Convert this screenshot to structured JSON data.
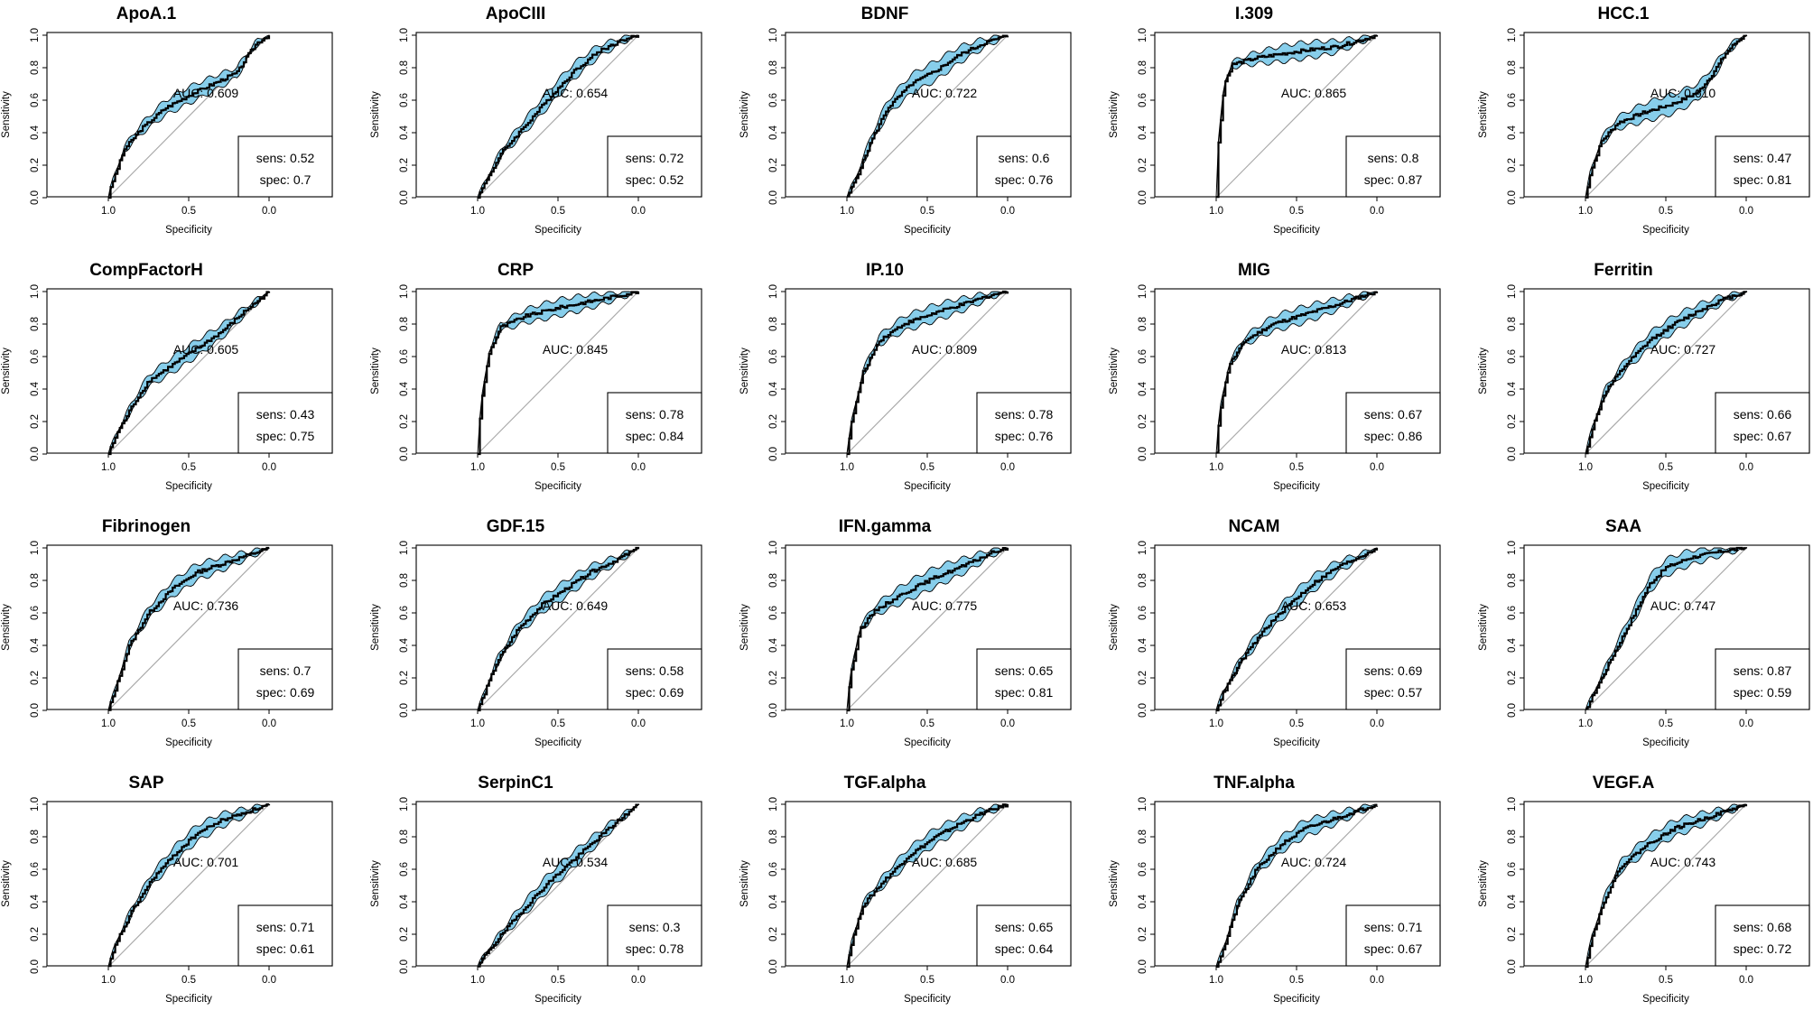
{
  "chart_data": {
    "type": "line",
    "description_axes": {
      "xlabel": "Specificity",
      "ylabel": "Sensitivity",
      "xlim": [
        1.0,
        0.0
      ],
      "ylim": [
        0.0,
        1.0
      ],
      "xticks": [
        "1.0",
        "0.5",
        "0.0"
      ],
      "yticks": [
        "0.0",
        "0.2",
        "0.4",
        "0.6",
        "0.8",
        "1.0"
      ]
    },
    "ci_fill_color": "#87CEEB",
    "curve_color": "#000000",
    "diagonal_color": "#aaaaaa",
    "panels": [
      {
        "title": "ApoA.1",
        "auc_label": "AUC: 0.609",
        "sens_label": "sens: 0.52",
        "spec_label": "spec: 0.7",
        "roc": [
          [
            1,
            0
          ],
          [
            0.98,
            0.08
          ],
          [
            0.9,
            0.3
          ],
          [
            0.8,
            0.42
          ],
          [
            0.65,
            0.55
          ],
          [
            0.5,
            0.63
          ],
          [
            0.35,
            0.7
          ],
          [
            0.2,
            0.77
          ],
          [
            0.15,
            0.85
          ],
          [
            0.08,
            0.95
          ],
          [
            0,
            1
          ]
        ],
        "ci_width": 0.05
      },
      {
        "title": "ApoCIII",
        "auc_label": "AUC: 0.654",
        "sens_label": "sens: 0.72",
        "spec_label": "spec: 0.52",
        "roc": [
          [
            1,
            0
          ],
          [
            0.95,
            0.1
          ],
          [
            0.85,
            0.28
          ],
          [
            0.7,
            0.45
          ],
          [
            0.55,
            0.62
          ],
          [
            0.4,
            0.78
          ],
          [
            0.25,
            0.9
          ],
          [
            0.1,
            0.97
          ],
          [
            0,
            1
          ]
        ],
        "ci_width": 0.05
      },
      {
        "title": "BDNF",
        "auc_label": "AUC: 0.722",
        "sens_label": "sens: 0.6",
        "spec_label": "spec: 0.76",
        "roc": [
          [
            1,
            0
          ],
          [
            0.93,
            0.15
          ],
          [
            0.85,
            0.35
          ],
          [
            0.75,
            0.55
          ],
          [
            0.6,
            0.7
          ],
          [
            0.45,
            0.78
          ],
          [
            0.3,
            0.88
          ],
          [
            0.15,
            0.95
          ],
          [
            0,
            1
          ]
        ],
        "ci_width": 0.06
      },
      {
        "title": "I.309",
        "auc_label": "AUC: 0.865",
        "sens_label": "sens: 0.8",
        "spec_label": "spec: 0.87",
        "roc": [
          [
            1,
            0
          ],
          [
            0.99,
            0.3
          ],
          [
            0.95,
            0.7
          ],
          [
            0.9,
            0.82
          ],
          [
            0.75,
            0.86
          ],
          [
            0.5,
            0.9
          ],
          [
            0.25,
            0.93
          ],
          [
            0.1,
            0.97
          ],
          [
            0,
            1
          ]
        ],
        "ci_width": 0.05
      },
      {
        "title": "HCC.1",
        "auc_label": "AUC: 0.610",
        "sens_label": "sens: 0.47",
        "spec_label": "spec: 0.81",
        "roc": [
          [
            1,
            0
          ],
          [
            0.97,
            0.15
          ],
          [
            0.9,
            0.35
          ],
          [
            0.8,
            0.46
          ],
          [
            0.65,
            0.52
          ],
          [
            0.45,
            0.58
          ],
          [
            0.3,
            0.65
          ],
          [
            0.22,
            0.75
          ],
          [
            0.12,
            0.9
          ],
          [
            0.05,
            0.97
          ],
          [
            0,
            1
          ]
        ],
        "ci_width": 0.06
      },
      {
        "title": "CompFactorH",
        "auc_label": "AUC: 0.605",
        "sens_label": "sens: 0.43",
        "spec_label": "spec: 0.75",
        "roc": [
          [
            1,
            0
          ],
          [
            0.95,
            0.12
          ],
          [
            0.85,
            0.3
          ],
          [
            0.75,
            0.45
          ],
          [
            0.6,
            0.55
          ],
          [
            0.45,
            0.65
          ],
          [
            0.3,
            0.75
          ],
          [
            0.15,
            0.88
          ],
          [
            0,
            1
          ]
        ],
        "ci_width": 0.05
      },
      {
        "title": "CRP",
        "auc_label": "AUC: 0.845",
        "sens_label": "sens: 0.78",
        "spec_label": "spec: 0.84",
        "roc": [
          [
            1,
            0
          ],
          [
            0.98,
            0.3
          ],
          [
            0.93,
            0.62
          ],
          [
            0.86,
            0.78
          ],
          [
            0.7,
            0.85
          ],
          [
            0.5,
            0.9
          ],
          [
            0.3,
            0.94
          ],
          [
            0.1,
            0.98
          ],
          [
            0,
            1
          ]
        ],
        "ci_width": 0.05
      },
      {
        "title": "IP.10",
        "auc_label": "AUC: 0.809",
        "sens_label": "sens: 0.78",
        "spec_label": "spec: 0.76",
        "roc": [
          [
            1,
            0
          ],
          [
            0.97,
            0.2
          ],
          [
            0.9,
            0.5
          ],
          [
            0.8,
            0.7
          ],
          [
            0.65,
            0.8
          ],
          [
            0.45,
            0.87
          ],
          [
            0.25,
            0.93
          ],
          [
            0.1,
            0.98
          ],
          [
            0,
            1
          ]
        ],
        "ci_width": 0.05
      },
      {
        "title": "MIG",
        "auc_label": "AUC: 0.813",
        "sens_label": "sens: 0.67",
        "spec_label": "spec: 0.86",
        "roc": [
          [
            1,
            0
          ],
          [
            0.98,
            0.25
          ],
          [
            0.92,
            0.55
          ],
          [
            0.82,
            0.7
          ],
          [
            0.65,
            0.8
          ],
          [
            0.45,
            0.86
          ],
          [
            0.25,
            0.92
          ],
          [
            0.1,
            0.97
          ],
          [
            0,
            1
          ]
        ],
        "ci_width": 0.05
      },
      {
        "title": "Ferritin",
        "auc_label": "AUC: 0.727",
        "sens_label": "sens: 0.66",
        "spec_label": "spec: 0.67",
        "roc": [
          [
            1,
            0
          ],
          [
            0.96,
            0.15
          ],
          [
            0.88,
            0.38
          ],
          [
            0.75,
            0.55
          ],
          [
            0.6,
            0.7
          ],
          [
            0.45,
            0.8
          ],
          [
            0.3,
            0.88
          ],
          [
            0.15,
            0.95
          ],
          [
            0,
            1
          ]
        ],
        "ci_width": 0.05
      },
      {
        "title": "Fibrinogen",
        "auc_label": "AUC: 0.736",
        "sens_label": "sens: 0.7",
        "spec_label": "spec: 0.69",
        "roc": [
          [
            1,
            0
          ],
          [
            0.95,
            0.15
          ],
          [
            0.87,
            0.4
          ],
          [
            0.75,
            0.6
          ],
          [
            0.6,
            0.75
          ],
          [
            0.45,
            0.85
          ],
          [
            0.3,
            0.9
          ],
          [
            0.15,
            0.95
          ],
          [
            0,
            1
          ]
        ],
        "ci_width": 0.05
      },
      {
        "title": "GDF.15",
        "auc_label": "AUC: 0.649",
        "sens_label": "sens: 0.58",
        "spec_label": "spec: 0.69",
        "roc": [
          [
            1,
            0
          ],
          [
            0.96,
            0.1
          ],
          [
            0.88,
            0.3
          ],
          [
            0.75,
            0.5
          ],
          [
            0.6,
            0.65
          ],
          [
            0.45,
            0.75
          ],
          [
            0.3,
            0.85
          ],
          [
            0.15,
            0.92
          ],
          [
            0,
            1
          ]
        ],
        "ci_width": 0.05
      },
      {
        "title": "IFN.gamma",
        "auc_label": "AUC: 0.775",
        "sens_label": "sens: 0.65",
        "spec_label": "spec: 0.81",
        "roc": [
          [
            1,
            0
          ],
          [
            0.98,
            0.2
          ],
          [
            0.92,
            0.5
          ],
          [
            0.82,
            0.62
          ],
          [
            0.65,
            0.72
          ],
          [
            0.45,
            0.82
          ],
          [
            0.25,
            0.9
          ],
          [
            0.1,
            0.97
          ],
          [
            0,
            1
          ]
        ],
        "ci_width": 0.06
      },
      {
        "title": "NCAM",
        "auc_label": "AUC: 0.653",
        "sens_label": "sens: 0.69",
        "spec_label": "spec: 0.57",
        "roc": [
          [
            1,
            0
          ],
          [
            0.96,
            0.1
          ],
          [
            0.85,
            0.3
          ],
          [
            0.7,
            0.5
          ],
          [
            0.55,
            0.65
          ],
          [
            0.4,
            0.78
          ],
          [
            0.25,
            0.88
          ],
          [
            0.1,
            0.95
          ],
          [
            0,
            1
          ]
        ],
        "ci_width": 0.05
      },
      {
        "title": "SAA",
        "auc_label": "AUC: 0.747",
        "sens_label": "sens: 0.87",
        "spec_label": "spec: 0.59",
        "roc": [
          [
            1,
            0
          ],
          [
            0.95,
            0.1
          ],
          [
            0.85,
            0.3
          ],
          [
            0.72,
            0.55
          ],
          [
            0.6,
            0.78
          ],
          [
            0.5,
            0.88
          ],
          [
            0.35,
            0.94
          ],
          [
            0.15,
            0.98
          ],
          [
            0,
            1
          ]
        ],
        "ci_width": 0.05
      },
      {
        "title": "SAP",
        "auc_label": "AUC: 0.701",
        "sens_label": "sens: 0.71",
        "spec_label": "spec: 0.61",
        "roc": [
          [
            1,
            0
          ],
          [
            0.95,
            0.15
          ],
          [
            0.85,
            0.35
          ],
          [
            0.72,
            0.55
          ],
          [
            0.58,
            0.7
          ],
          [
            0.45,
            0.82
          ],
          [
            0.3,
            0.9
          ],
          [
            0.12,
            0.96
          ],
          [
            0,
            1
          ]
        ],
        "ci_width": 0.05
      },
      {
        "title": "SerpinC1",
        "auc_label": "AUC: 0.534",
        "sens_label": "sens: 0.3",
        "spec_label": "spec: 0.78",
        "roc": [
          [
            1,
            0
          ],
          [
            0.95,
            0.08
          ],
          [
            0.85,
            0.2
          ],
          [
            0.72,
            0.35
          ],
          [
            0.58,
            0.5
          ],
          [
            0.45,
            0.62
          ],
          [
            0.3,
            0.75
          ],
          [
            0.15,
            0.88
          ],
          [
            0,
            1
          ]
        ],
        "ci_width": 0.05
      },
      {
        "title": "TGF.alpha",
        "auc_label": "AUC: 0.685",
        "sens_label": "sens: 0.65",
        "spec_label": "spec: 0.64",
        "roc": [
          [
            1,
            0
          ],
          [
            0.97,
            0.15
          ],
          [
            0.9,
            0.38
          ],
          [
            0.78,
            0.52
          ],
          [
            0.62,
            0.68
          ],
          [
            0.45,
            0.8
          ],
          [
            0.3,
            0.88
          ],
          [
            0.15,
            0.95
          ],
          [
            0,
            1
          ]
        ],
        "ci_width": 0.05
      },
      {
        "title": "TNF.alpha",
        "auc_label": "AUC: 0.724",
        "sens_label": "sens: 0.71",
        "spec_label": "spec: 0.67",
        "roc": [
          [
            1,
            0
          ],
          [
            0.95,
            0.12
          ],
          [
            0.87,
            0.38
          ],
          [
            0.75,
            0.6
          ],
          [
            0.6,
            0.75
          ],
          [
            0.45,
            0.85
          ],
          [
            0.3,
            0.9
          ],
          [
            0.15,
            0.95
          ],
          [
            0,
            1
          ]
        ],
        "ci_width": 0.05
      },
      {
        "title": "VEGF.A",
        "auc_label": "AUC: 0.743",
        "sens_label": "sens: 0.68",
        "spec_label": "spec: 0.72",
        "roc": [
          [
            1,
            0
          ],
          [
            0.96,
            0.18
          ],
          [
            0.88,
            0.42
          ],
          [
            0.78,
            0.62
          ],
          [
            0.62,
            0.75
          ],
          [
            0.45,
            0.85
          ],
          [
            0.3,
            0.9
          ],
          [
            0.15,
            0.95
          ],
          [
            0,
            1
          ]
        ],
        "ci_width": 0.05
      }
    ]
  }
}
